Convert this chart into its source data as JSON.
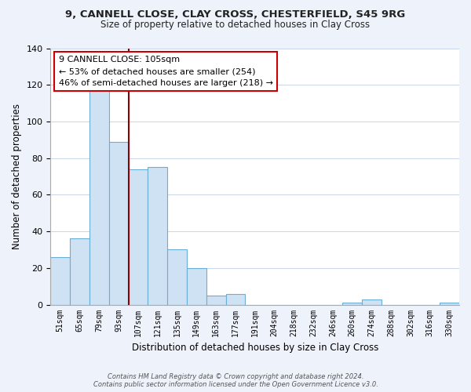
{
  "title_line1": "9, CANNELL CLOSE, CLAY CROSS, CHESTERFIELD, S45 9RG",
  "title_line2": "Size of property relative to detached houses in Clay Cross",
  "xlabel": "Distribution of detached houses by size in Clay Cross",
  "ylabel": "Number of detached properties",
  "bar_labels": [
    "51sqm",
    "65sqm",
    "79sqm",
    "93sqm",
    "107sqm",
    "121sqm",
    "135sqm",
    "149sqm",
    "163sqm",
    "177sqm",
    "191sqm",
    "204sqm",
    "218sqm",
    "232sqm",
    "246sqm",
    "260sqm",
    "274sqm",
    "288sqm",
    "302sqm",
    "316sqm",
    "330sqm"
  ],
  "bar_values": [
    26,
    36,
    118,
    89,
    74,
    75,
    30,
    20,
    5,
    6,
    0,
    0,
    0,
    0,
    0,
    1,
    3,
    0,
    0,
    0,
    1
  ],
  "bar_fill_color": "#cfe2f3",
  "bar_edge_color": "#6aaed6",
  "vline_x_index": 3,
  "vline_color": "#8b0000",
  "annotation_title": "9 CANNELL CLOSE: 105sqm",
  "annotation_line1": "← 53% of detached houses are smaller (254)",
  "annotation_line2": "46% of semi-detached houses are larger (218) →",
  "annotation_box_color": "#ffffff",
  "annotation_box_edge": "#cc0000",
  "ylim": [
    0,
    140
  ],
  "yticks": [
    0,
    20,
    40,
    60,
    80,
    100,
    120,
    140
  ],
  "footer_line1": "Contains HM Land Registry data © Crown copyright and database right 2024.",
  "footer_line2": "Contains public sector information licensed under the Open Government Licence v3.0.",
  "bg_color": "#eef2fb",
  "plot_bg_color": "#ffffff",
  "grid_color": "#c8d4e8"
}
